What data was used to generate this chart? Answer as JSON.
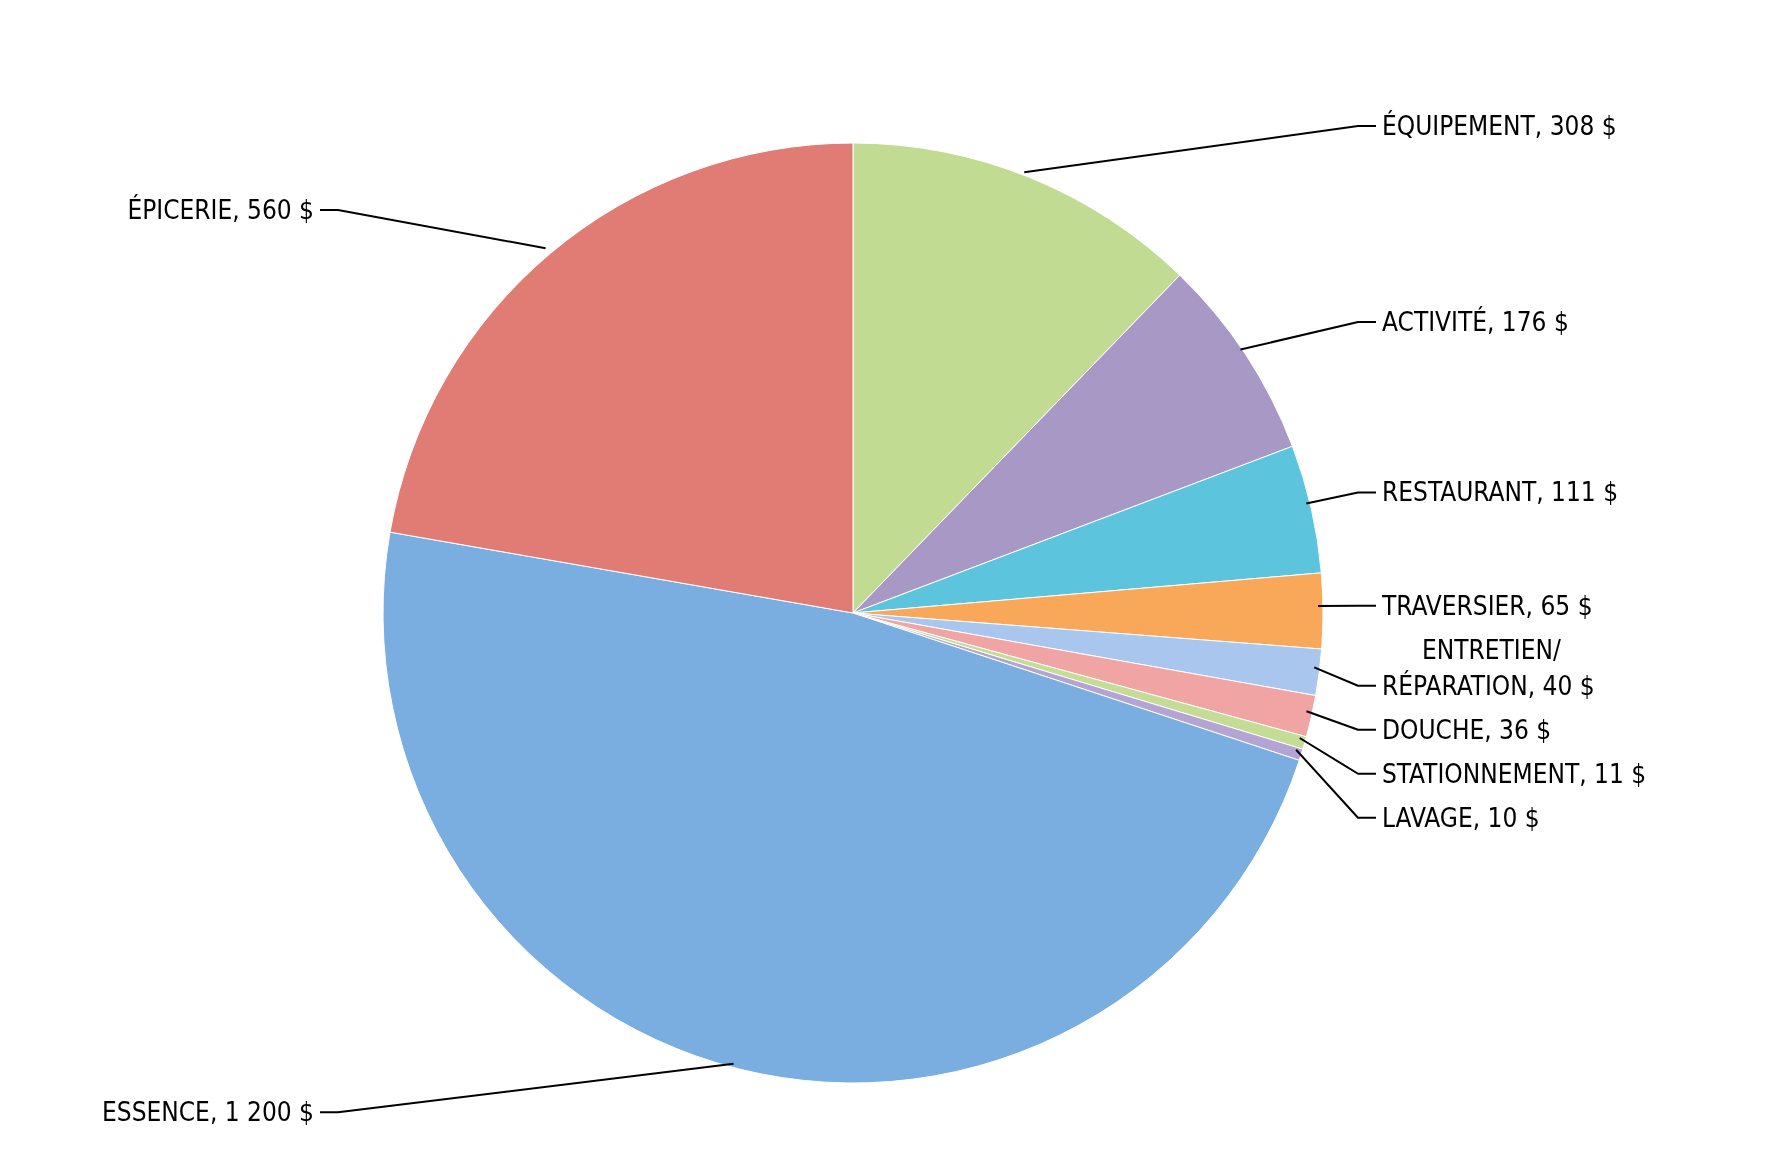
{
  "chart_data": {
    "type": "pie",
    "categories": [
      "ÉQUIPEMENT",
      "ACTIVITÉ",
      "RESTAURANT",
      "TRAVERSIER",
      "ENTRETIEN/RÉPARATION",
      "DOUCHE",
      "STATIONNEMENT",
      "LAVAGE",
      "ESSENCE",
      "ÉPICERIE"
    ],
    "values": [
      308,
      176,
      111,
      65,
      40,
      36,
      11,
      10,
      1200,
      560
    ],
    "value_labels": [
      "308 $",
      "176 $",
      "111 $",
      "65 $",
      "40 $",
      "36 $",
      "11 $",
      "10 $",
      "1 200 $",
      "560 $"
    ],
    "colors": [
      "#c2db92",
      "#a898c6",
      "#5cc4dc",
      "#f9a85a",
      "#a8c6ee",
      "#f0a4a4",
      "#c4dc94",
      "#b4a4d4",
      "#7aaee0",
      "#e07c74"
    ]
  }
}
